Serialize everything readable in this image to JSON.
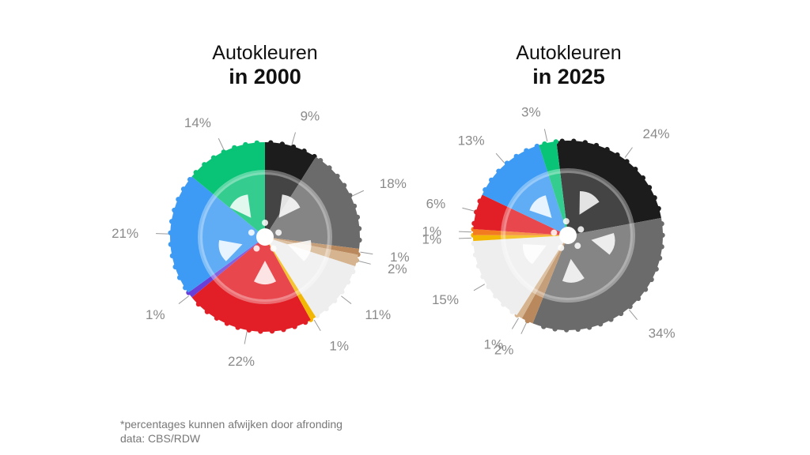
{
  "chart_data": [
    {
      "type": "pie",
      "title_line1": "Autokleuren",
      "title_line2": "in 2000",
      "slices": [
        {
          "value": 9,
          "label": "9%",
          "color": "#1c1c1c"
        },
        {
          "value": 18,
          "label": "18%",
          "color": "#6b6b6b"
        },
        {
          "value": 1,
          "label": "1%",
          "color": "#b9895d"
        },
        {
          "value": 2,
          "label": "2%",
          "color": "#d6b48f"
        },
        {
          "value": 11,
          "label": "11%",
          "color": "#eeeeee"
        },
        {
          "value": 1,
          "label": "1%",
          "color": "#f2b705"
        },
        {
          "value": 22,
          "label": "22%",
          "color": "#e21f26"
        },
        {
          "value": 1,
          "label": "1%",
          "color": "#6a3fd8"
        },
        {
          "value": 21,
          "label": "21%",
          "color": "#3d9bf5"
        },
        {
          "value": 14,
          "label": "14%",
          "color": "#09c377"
        }
      ]
    },
    {
      "type": "pie",
      "title_line1": "Autokleuren",
      "title_line2": "in 2025",
      "slices": [
        {
          "value": 24,
          "label": "24%",
          "color": "#1c1c1c"
        },
        {
          "value": 34,
          "label": "34%",
          "color": "#6b6b6b"
        },
        {
          "value": 2,
          "label": "2%",
          "color": "#b9895d"
        },
        {
          "value": 1,
          "label": "1%",
          "color": "#d6b48f"
        },
        {
          "value": 15,
          "label": "15%",
          "color": "#eeeeee"
        },
        {
          "value": 1,
          "label": "1%",
          "color": "#f2b705"
        },
        {
          "value": 1,
          "label": "1%",
          "color": "#f47c20"
        },
        {
          "value": 6,
          "label": "6%",
          "color": "#e21f26"
        },
        {
          "value": 13,
          "label": "13%",
          "color": "#3d9bf5"
        },
        {
          "value": 3,
          "label": "3%",
          "color": "#09c377"
        }
      ]
    }
  ],
  "footer": {
    "note": "*percentages kunnen afwijken door afronding",
    "source": "data: CBS/RDW"
  }
}
